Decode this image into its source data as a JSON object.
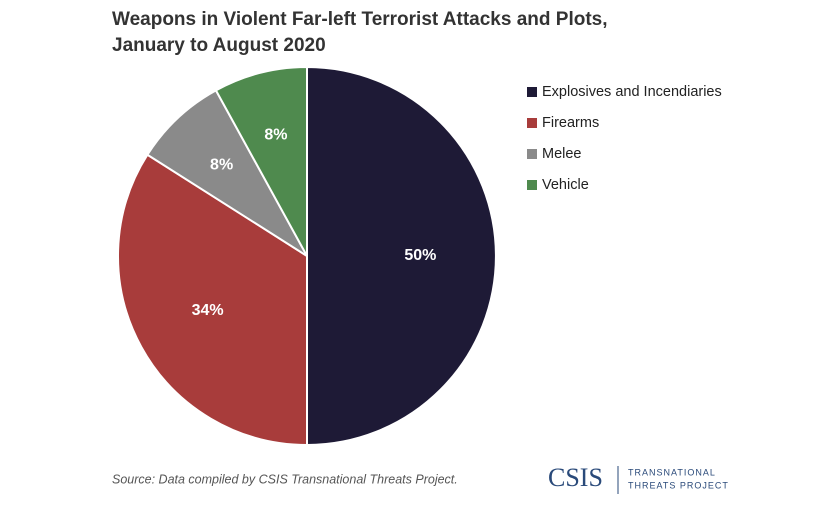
{
  "chart_data": {
    "type": "pie",
    "title": [
      "Weapons in Violent Far-left Terrorist Attacks and Plots,",
      "January to August 2020"
    ],
    "categories": [
      "Explosives and Incendiaries",
      "Firearms",
      "Melee",
      "Vehicle"
    ],
    "values": [
      50,
      34,
      8,
      8
    ],
    "value_labels": [
      "50%",
      "34%",
      "8%",
      "8%"
    ],
    "colors": [
      "#1e1a36",
      "#a83c3b",
      "#8a8a8a",
      "#4f8a4e"
    ],
    "legend": "right",
    "source": "Source: Data compiled by CSIS Transnational Threats Project."
  },
  "logo": {
    "name": "CSIS",
    "line1": "TRANSNATIONAL",
    "line2": "THREATS PROJECT"
  }
}
